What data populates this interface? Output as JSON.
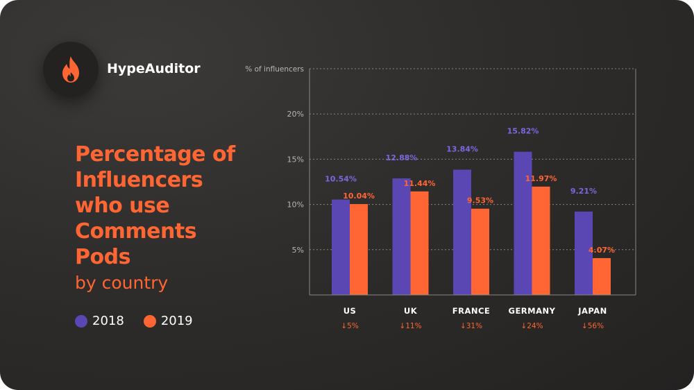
{
  "brand": {
    "name": "HypeAuditor",
    "logo_icon": "flame-icon",
    "accent": "#ff6633"
  },
  "title_lines": [
    "Percentage of",
    "Influencers",
    "who use",
    "Comments",
    "Pods"
  ],
  "subtitle": "by country",
  "legend": [
    {
      "label": "2018",
      "color": "#5b47b3"
    },
    {
      "label": "2019",
      "color": "#ff6633"
    }
  ],
  "chart_data": {
    "type": "bar",
    "ylabel": "% of influencers",
    "ylim": [
      0,
      25
    ],
    "yticks": [
      5,
      10,
      15,
      20
    ],
    "ytick_labels": [
      "5%",
      "10%",
      "15%",
      "20%"
    ],
    "grid": true,
    "categories": [
      "US",
      "UK",
      "FRANCE",
      "GERMANY",
      "JAPAN"
    ],
    "series": [
      {
        "name": "2018",
        "color": "#5b47b3",
        "values": [
          10.54,
          12.88,
          13.84,
          15.82,
          9.21
        ],
        "labels": [
          "10.54%",
          "12.88%",
          "13.84%",
          "15.82%",
          "9.21%"
        ]
      },
      {
        "name": "2019",
        "color": "#ff6633",
        "values": [
          10.04,
          11.44,
          9.53,
          11.97,
          4.07
        ],
        "labels": [
          "10.04%",
          "11.44%",
          "9.53%",
          "11.97%",
          "4.07%"
        ]
      }
    ],
    "changes": [
      "5%",
      "11%",
      "31%",
      "24%",
      "56%"
    ],
    "change_arrow": "↓",
    "change_color": "#ff6633"
  }
}
